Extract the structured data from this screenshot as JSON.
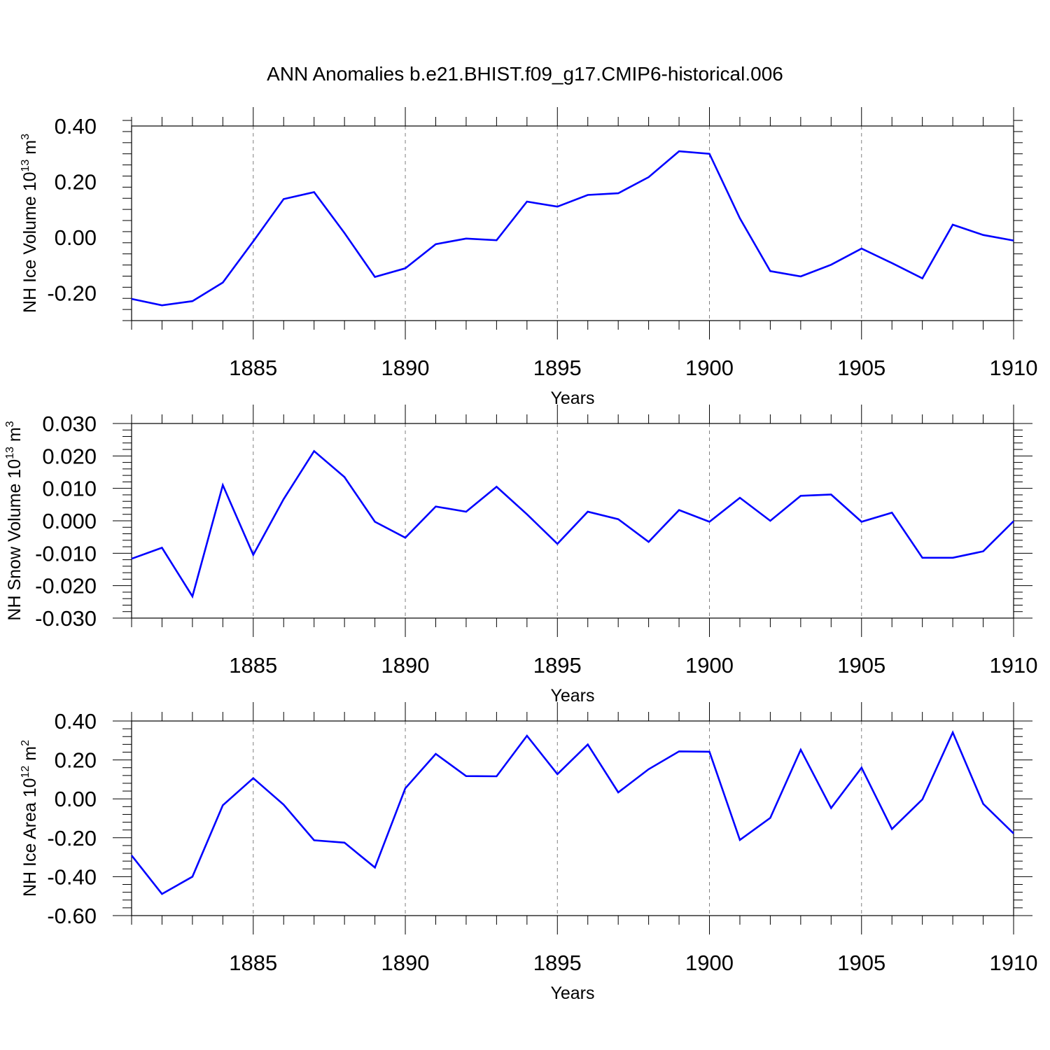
{
  "title": "ANN Anomalies b.e21.BHIST.f09_g17.CMIP6-historical.006",
  "line_color": "#0000ff",
  "chart_data": [
    {
      "type": "line",
      "ylabel_main": "NH Ice Volume 10",
      "ylabel_exp": "13",
      "ylabel_unit": " m",
      "ylabel_unit_exp": "3",
      "xlabel": "Years",
      "xlim": [
        1881,
        1910
      ],
      "ylim": [
        -0.3,
        0.4
      ],
      "yticks": [
        0.4,
        0.2,
        0.0,
        -0.2
      ],
      "ytick_labels": [
        "0.40",
        "0.20",
        "0.00",
        "-0.20"
      ],
      "xticks": [
        1885,
        1890,
        1895,
        1900,
        1905,
        1910
      ],
      "xtick_labels": [
        "1885",
        "1890",
        "1895",
        "1900",
        "1905",
        "1910"
      ],
      "x": [
        1881,
        1882,
        1883,
        1884,
        1885,
        1886,
        1887,
        1888,
        1889,
        1890,
        1891,
        1892,
        1893,
        1894,
        1895,
        1896,
        1897,
        1898,
        1899,
        1900,
        1901,
        1902,
        1903,
        1904,
        1905,
        1906,
        1907,
        1908,
        1909,
        1910
      ],
      "values": [
        -0.222,
        -0.245,
        -0.23,
        -0.163,
        -0.015,
        0.137,
        0.162,
        0.015,
        -0.143,
        -0.112,
        -0.025,
        -0.005,
        -0.011,
        0.128,
        0.11,
        0.152,
        0.158,
        0.216,
        0.309,
        0.3,
        0.068,
        -0.122,
        -0.141,
        -0.099,
        -0.041,
        -0.093,
        -0.148,
        0.045,
        0.008,
        -0.012
      ]
    },
    {
      "type": "line",
      "ylabel_main": "NH Snow Volume 10",
      "ylabel_exp": "13",
      "ylabel_unit": " m",
      "ylabel_unit_exp": "3",
      "xlabel": "Years",
      "xlim": [
        1881,
        1910
      ],
      "ylim": [
        -0.03,
        0.03
      ],
      "yticks": [
        0.03,
        0.02,
        0.01,
        0.0,
        -0.01,
        -0.02,
        -0.03
      ],
      "ytick_labels": [
        "0.030",
        "0.020",
        "0.010",
        "0.000",
        "-0.010",
        "-0.020",
        "-0.030"
      ],
      "xticks": [
        1885,
        1890,
        1895,
        1900,
        1905,
        1910
      ],
      "xtick_labels": [
        "1885",
        "1890",
        "1895",
        "1900",
        "1905",
        "1910"
      ],
      "x": [
        1881,
        1882,
        1883,
        1884,
        1885,
        1886,
        1887,
        1888,
        1889,
        1890,
        1891,
        1892,
        1893,
        1894,
        1895,
        1896,
        1897,
        1898,
        1899,
        1900,
        1901,
        1902,
        1903,
        1904,
        1905,
        1906,
        1907,
        1908,
        1909,
        1910
      ],
      "values": [
        -0.0117,
        -0.0083,
        -0.0233,
        0.011,
        -0.0105,
        0.0067,
        0.0215,
        0.0135,
        -0.0003,
        -0.0052,
        0.0044,
        0.0028,
        0.0105,
        0.002,
        -0.0071,
        0.0028,
        0.0005,
        -0.0065,
        0.0033,
        -0.0003,
        0.0071,
        0.0,
        0.0077,
        0.0081,
        -0.0003,
        0.0025,
        -0.0114,
        -0.0114,
        -0.0094,
        -0.0001
      ]
    },
    {
      "type": "line",
      "ylabel_main": "NH Ice Area 10",
      "ylabel_exp": "12",
      "ylabel_unit": " m",
      "ylabel_unit_exp": "2",
      "xlabel": "Years",
      "xlim": [
        1881,
        1910
      ],
      "ylim": [
        -0.6,
        0.4
      ],
      "yticks": [
        0.4,
        0.2,
        0.0,
        -0.2,
        -0.4,
        -0.6
      ],
      "ytick_labels": [
        "0.40",
        "0.20",
        "0.00",
        "-0.20",
        "-0.40",
        "-0.60"
      ],
      "xticks": [
        1885,
        1890,
        1895,
        1900,
        1905,
        1910
      ],
      "xtick_labels": [
        "1885",
        "1890",
        "1895",
        "1900",
        "1905",
        "1910"
      ],
      "x": [
        1881,
        1882,
        1883,
        1884,
        1885,
        1886,
        1887,
        1888,
        1889,
        1890,
        1891,
        1892,
        1893,
        1894,
        1895,
        1896,
        1897,
        1898,
        1899,
        1900,
        1901,
        1902,
        1903,
        1904,
        1905,
        1906,
        1907,
        1908,
        1909,
        1910
      ],
      "values": [
        -0.291,
        -0.489,
        -0.4,
        -0.033,
        0.106,
        -0.03,
        -0.213,
        -0.225,
        -0.353,
        0.054,
        0.231,
        0.117,
        0.116,
        0.324,
        0.127,
        0.279,
        0.033,
        0.152,
        0.244,
        0.242,
        -0.211,
        -0.098,
        0.252,
        -0.047,
        0.16,
        -0.155,
        -0.003,
        0.341,
        -0.026,
        -0.178
      ]
    }
  ]
}
